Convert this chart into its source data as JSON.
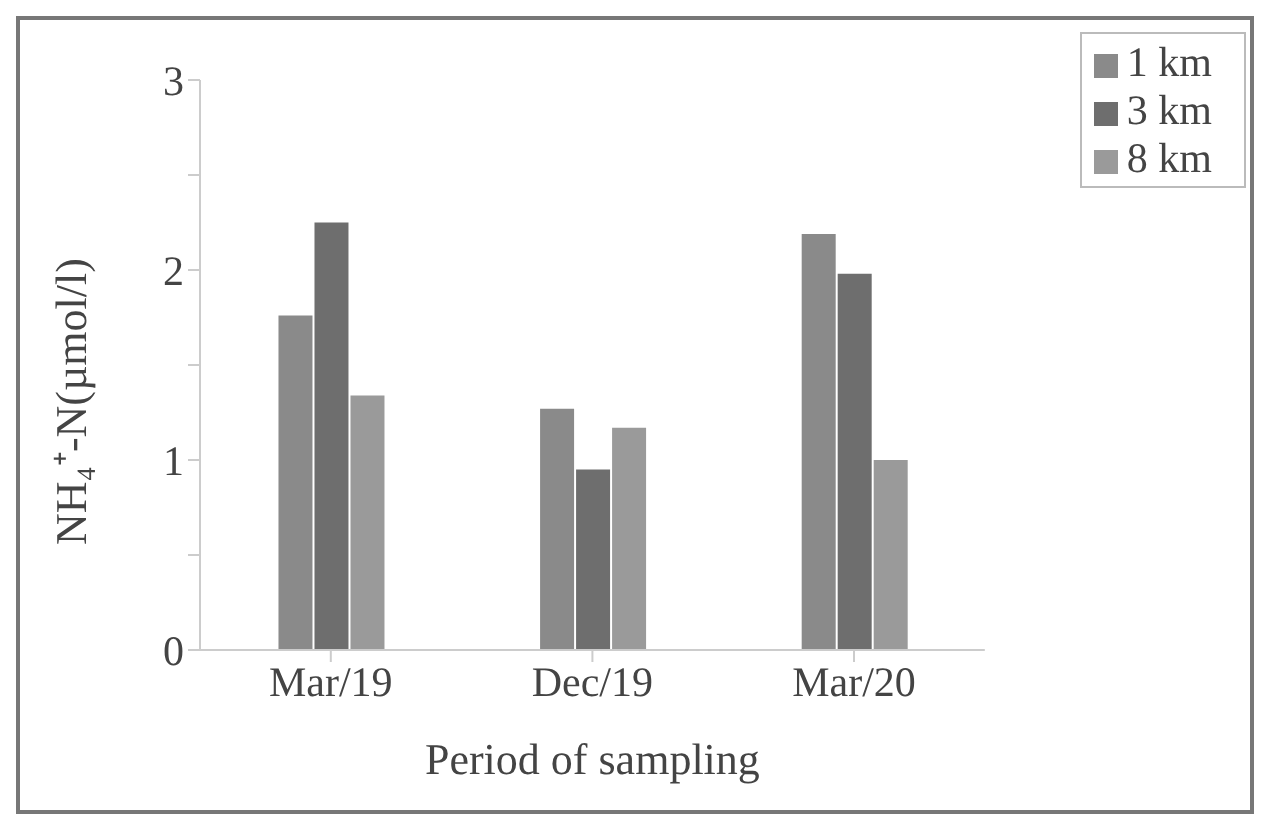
{
  "chart_data": {
    "type": "bar",
    "xlabel": "Period of sampling",
    "ylabel": "NH₄⁺-N(µmol/l)",
    "categories": [
      "Mar/19",
      "Dec/19",
      "Mar/20"
    ],
    "series": [
      {
        "name": "1 km",
        "color": "#8a8a8a",
        "values": [
          1.76,
          1.27,
          2.19
        ]
      },
      {
        "name": "3 km",
        "color": "#6e6e6e",
        "values": [
          2.25,
          0.95,
          1.98
        ]
      },
      {
        "name": "8 km",
        "color": "#9a9a9a",
        "values": [
          1.34,
          1.17,
          1.0
        ]
      }
    ],
    "ylim": [
      0,
      3
    ],
    "yticks": [
      0,
      {
        "value": 0.5,
        "label": null
      },
      1,
      {
        "value": 1.5,
        "label": null
      },
      2,
      {
        "value": 2.5,
        "label": null
      },
      3
    ],
    "grid": false,
    "legend": "top right"
  }
}
